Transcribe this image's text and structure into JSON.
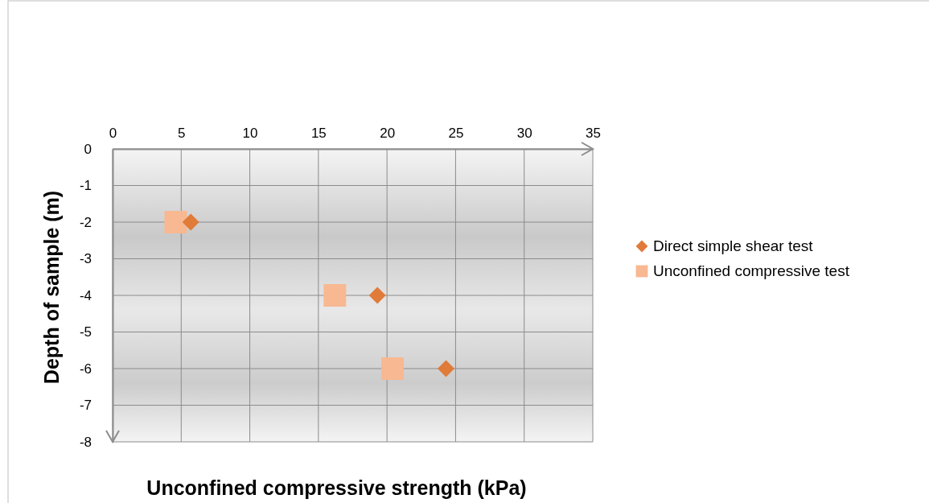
{
  "chart_data": {
    "type": "scatter",
    "xlabel": "Unconfined compressive strength (kPa)",
    "ylabel": "Depth of sample (m)",
    "xlim": [
      0,
      35
    ],
    "xticks": [
      0,
      5,
      10,
      15,
      20,
      25,
      30,
      35
    ],
    "ylim": [
      -8,
      0
    ],
    "yticks": [
      -8,
      -7,
      -6,
      -5,
      -4,
      -3,
      -2,
      -1,
      0
    ],
    "grid": true,
    "legend": "right",
    "series": [
      {
        "name": "Direct simple shear test",
        "color": "#e07b39",
        "marker": "diamond",
        "x": [
          5.7,
          19.3,
          24.3
        ],
        "values": [
          -2,
          -4,
          -6
        ]
      },
      {
        "name": "Unconfined compressive test",
        "color": "#f8b891",
        "marker": "square",
        "x": [
          4.6,
          16.2,
          20.4
        ],
        "values": [
          -2,
          -4,
          -6
        ]
      }
    ]
  }
}
